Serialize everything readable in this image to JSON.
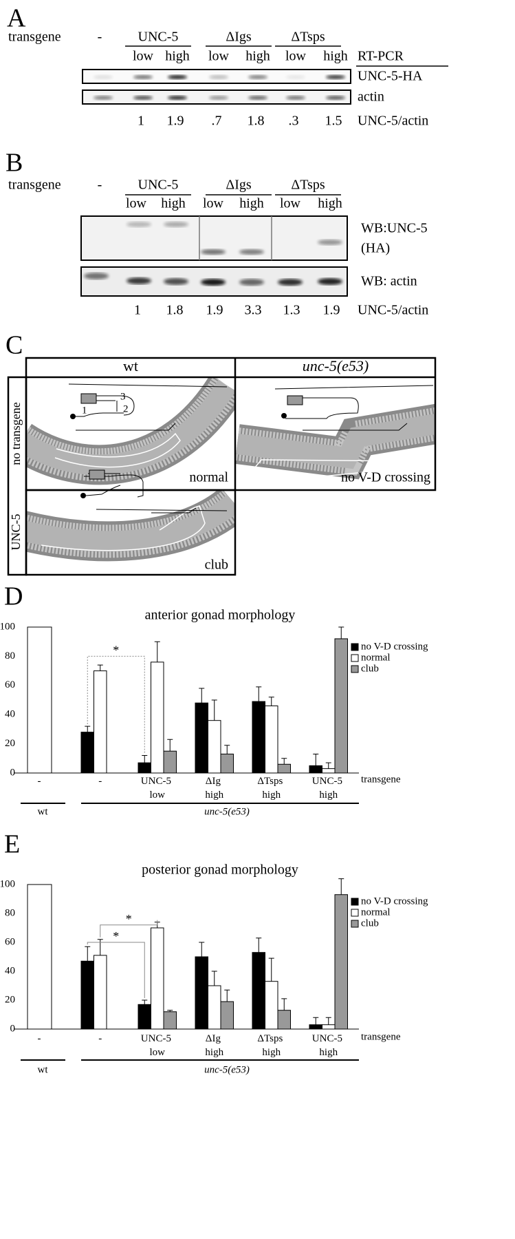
{
  "panelA": {
    "label": "A",
    "transgene": "transgene",
    "none": "-",
    "groups": [
      "UNC-5",
      "ΔIgs",
      "ΔTsps"
    ],
    "levels": [
      "low",
      "high",
      "low",
      "high",
      "low",
      "high"
    ],
    "method": "RT-PCR",
    "rows": [
      "UNC-5-HA",
      "actin"
    ],
    "ratios": [
      "1",
      "1.9",
      ".7",
      "1.8",
      ".3",
      "1.5"
    ],
    "ratio_label": "UNC-5/actin"
  },
  "panelB": {
    "label": "B",
    "transgene": "transgene",
    "none": "-",
    "groups": [
      "UNC-5",
      "ΔIgs",
      "ΔTsps"
    ],
    "levels": [
      "low",
      "high",
      "low",
      "high",
      "low",
      "high"
    ],
    "rows": [
      "WB:UNC-5",
      "(HA)",
      "WB: actin"
    ],
    "ratios": [
      "1",
      "1.8",
      "1.9",
      "3.3",
      "1.3",
      "1.9"
    ],
    "ratio_label": "UNC-5/actin"
  },
  "panelC": {
    "label": "C",
    "columns": [
      "wt",
      "unc-5(e53)"
    ],
    "rows": [
      "no transgene",
      "UNC-5"
    ],
    "phenotypes": [
      "normal",
      "no V-D crossing",
      "club"
    ],
    "steps": [
      "1",
      "2",
      "3"
    ]
  },
  "chart_data": [
    {
      "type": "bar",
      "panel": "D",
      "title": "anterior gonad morphology",
      "categories": [
        "-",
        "-",
        "UNC-5\nlow",
        "ΔIg\nhigh",
        "ΔTsps\nhigh",
        "UNC-5\nhigh"
      ],
      "xlabel": "transgene",
      "groups": [
        "wt",
        "unc-5(e53)"
      ],
      "ylim": [
        0,
        100
      ],
      "yticks": [
        0,
        20,
        40,
        60,
        80,
        100
      ],
      "legend": "upper right",
      "series": [
        {
          "name": "no V-D crossing",
          "color": "#000000",
          "values": [
            null,
            28,
            7,
            48,
            49,
            5
          ],
          "errors": [
            null,
            4,
            5,
            10,
            10,
            8
          ]
        },
        {
          "name": "normal",
          "color": "#ffffff",
          "values": [
            100,
            70,
            76,
            36,
            46,
            3
          ],
          "errors": [
            null,
            4,
            14,
            14,
            6,
            4
          ]
        },
        {
          "name": "club",
          "color": "#999999",
          "values": [
            null,
            null,
            15,
            13,
            6,
            92
          ],
          "errors": [
            null,
            null,
            8,
            6,
            4,
            8
          ]
        }
      ],
      "annotations": [
        "*"
      ]
    },
    {
      "type": "bar",
      "panel": "E",
      "title": "posterior gonad morphology",
      "categories": [
        "-",
        "-",
        "UNC-5\nlow",
        "ΔIg\nhigh",
        "ΔTsps\nhigh",
        "UNC-5\nhigh"
      ],
      "xlabel": "transgene",
      "groups": [
        "wt",
        "unc-5(e53)"
      ],
      "ylim": [
        0,
        100
      ],
      "yticks": [
        0,
        20,
        40,
        60,
        80,
        100
      ],
      "legend": "upper right",
      "series": [
        {
          "name": "no V-D crossing",
          "color": "#000000",
          "values": [
            null,
            47,
            17,
            50,
            53,
            3
          ],
          "errors": [
            null,
            10,
            3,
            10,
            10,
            5
          ]
        },
        {
          "name": "normal",
          "color": "#ffffff",
          "values": [
            100,
            51,
            70,
            30,
            33,
            3
          ],
          "errors": [
            null,
            11,
            4,
            10,
            16,
            5
          ]
        },
        {
          "name": "club",
          "color": "#999999",
          "values": [
            null,
            null,
            12,
            19,
            13,
            93
          ],
          "errors": [
            null,
            null,
            1,
            8,
            8,
            11
          ]
        }
      ],
      "annotations": [
        "*",
        "*"
      ]
    }
  ]
}
